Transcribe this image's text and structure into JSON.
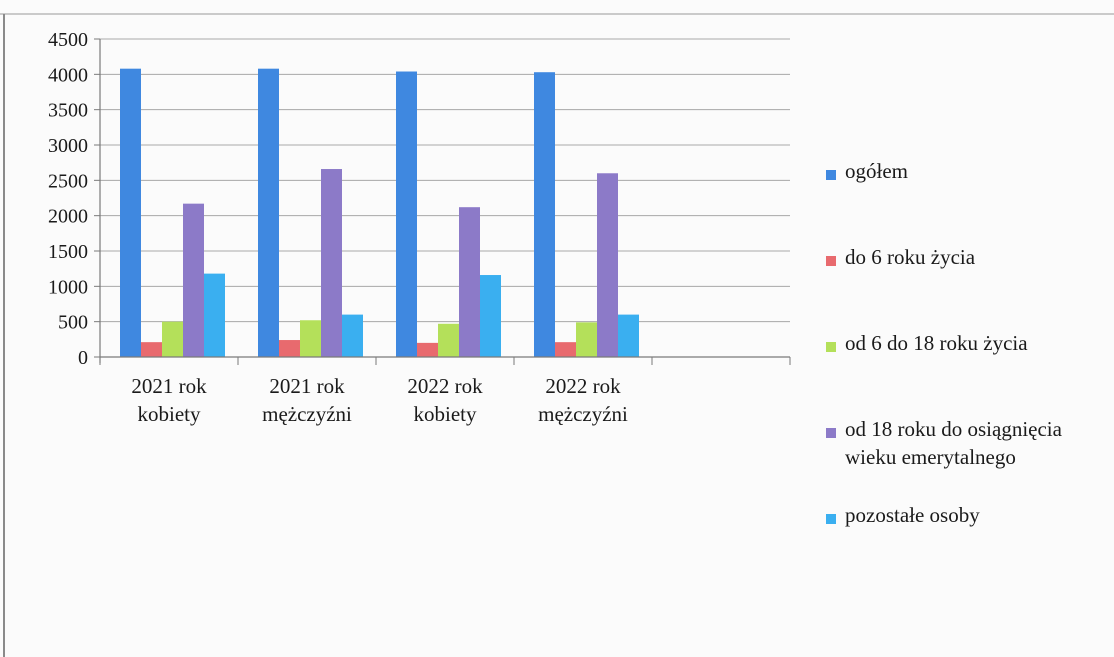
{
  "chart_data": {
    "type": "bar",
    "categories": [
      [
        "2021 rok",
        "kobiety"
      ],
      [
        "2021 rok",
        "mężczyźni"
      ],
      [
        "2022 rok",
        "kobiety"
      ],
      [
        "2022 rok",
        "mężczyźni"
      ],
      [
        "",
        ""
      ]
    ],
    "series": [
      {
        "name": "ogółem",
        "color": "#3f88e0",
        "values": [
          4080,
          4080,
          4040,
          4030,
          null
        ]
      },
      {
        "name": "do 6 roku życia",
        "color": "#e86a6e",
        "values": [
          210,
          240,
          200,
          210,
          null
        ]
      },
      {
        "name": "od 6 do 18 roku życia",
        "color": "#b4e05a",
        "values": [
          500,
          520,
          470,
          490,
          null
        ]
      },
      {
        "name": "od 18 roku do osiągnięcia wieku emerytalnego",
        "color": "#8c7ac8",
        "values": [
          2170,
          2660,
          2120,
          2600,
          null
        ]
      },
      {
        "name": "pozostałe osoby",
        "color": "#3aaff0",
        "values": [
          1180,
          600,
          1160,
          600,
          null
        ]
      }
    ],
    "legend_lines": [
      [
        "ogółem"
      ],
      [
        "do 6 roku życia"
      ],
      [
        "od 6 do 18 roku życia"
      ],
      [
        "od 18 roku do osiągnięcia",
        "wieku emerytalnego"
      ],
      [
        "pozostałe osoby"
      ]
    ],
    "yticks": [
      0,
      500,
      1000,
      1500,
      2000,
      2500,
      3000,
      3500,
      4000,
      4500
    ],
    "ylim": [
      0,
      4500
    ],
    "title": "",
    "xlabel": "",
    "ylabel": "",
    "grid": true,
    "legend_position": "right"
  }
}
